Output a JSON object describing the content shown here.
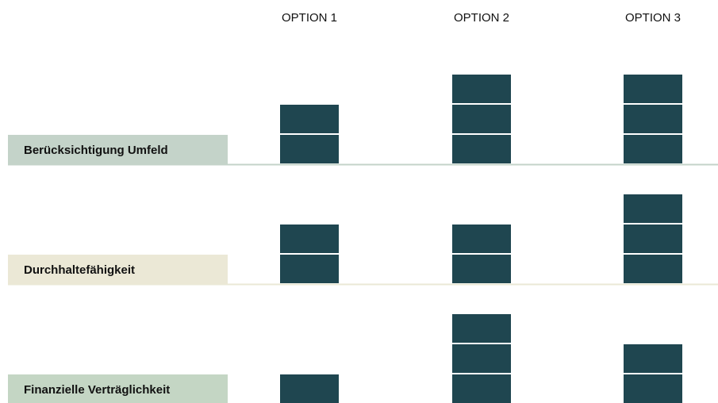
{
  "chart_data": {
    "type": "pictogram",
    "categories": [
      "OPTION 1",
      "OPTION 2",
      "OPTION 3"
    ],
    "mark_color": "#1f4650",
    "series": [
      {
        "name": "Berücksichtigung Umfeld",
        "color": "#c4d3c9",
        "values": [
          2,
          3,
          3
        ]
      },
      {
        "name": "Durchhaltefähigkeit",
        "color": "#ebe8d6",
        "values": [
          2,
          2,
          3
        ]
      },
      {
        "name": "Finanzielle Verträglichkeit",
        "color": "#c4d6c4",
        "values": [
          1,
          3,
          2
        ]
      }
    ]
  }
}
